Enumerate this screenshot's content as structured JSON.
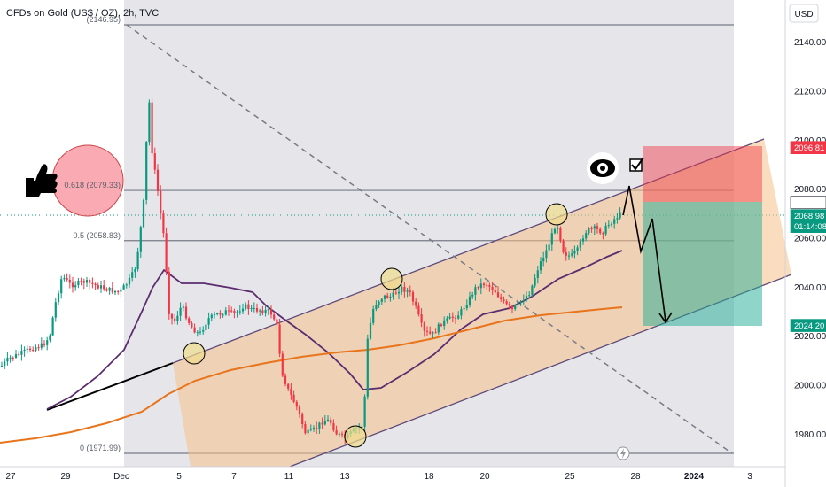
{
  "chart_data": {
    "type": "candlestick",
    "title": "CFDs on Gold (US$ / OZ), 2h, TVC",
    "currency": "USD",
    "y_range": [
      1967,
      2157
    ],
    "y_ticks": [
      "2140.00",
      "2120.00",
      "2100.00",
      "2080.00",
      "2060.00",
      "2040.00",
      "2020.00",
      "2000.00",
      "1980.00"
    ],
    "x_ticks": [
      "27",
      "29",
      "Dec",
      "5",
      "7",
      "11",
      "13",
      "18",
      "20",
      "25",
      "28",
      "2024",
      "3"
    ],
    "fib_levels": [
      {
        "label": "(2146.95)",
        "value": 2146.95
      },
      {
        "label": "0.618 (2079.33)",
        "value": 2079.33
      },
      {
        "label": "0.5 (2058.83)",
        "value": 2058.83
      },
      {
        "label": "0 (1971.99)",
        "value": 1971.99
      }
    ],
    "price_tags": [
      {
        "value": "2096.81",
        "color": "#f23645"
      },
      {
        "value": "2074.39",
        "color": "#ffffff",
        "text_color": "#131722"
      },
      {
        "value": "2068.98",
        "sub": "01:14:08",
        "color": "#089981"
      },
      {
        "value": "2024.20",
        "color": "#089981"
      }
    ],
    "trade": {
      "stop": 2096.81,
      "entry": 2074.39,
      "target": 2024.2
    },
    "colors": {
      "up": "#089981",
      "down": "#f23645",
      "ma_fast": "#5b2c6f",
      "ma_slow": "#e8741c",
      "channel": "#f5c089"
    }
  }
}
